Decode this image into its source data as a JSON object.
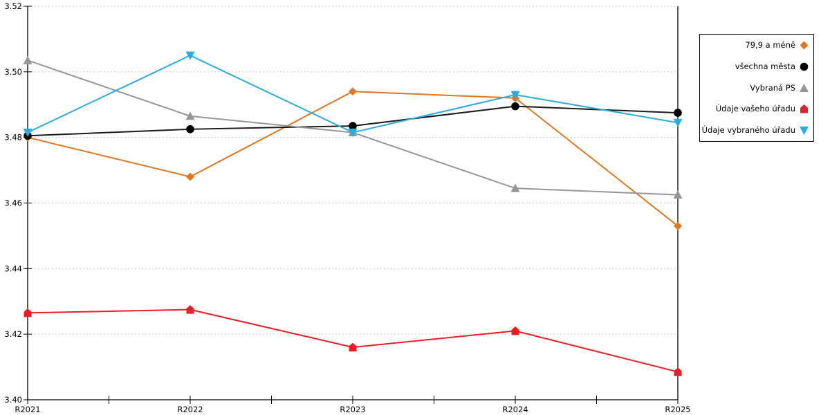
{
  "chart_data": {
    "type": "line",
    "categories": [
      "R2021",
      "R2022",
      "R2023",
      "R2024",
      "R2025"
    ],
    "series": [
      {
        "name": "79,9 a méně",
        "marker": "diamond",
        "color": "#E2761E",
        "values": [
          3.48,
          3.468,
          3.494,
          3.492,
          3.453
        ]
      },
      {
        "name": "všechna města",
        "marker": "circle",
        "color": "#1A1A1A",
        "values": [
          3.4805,
          3.4825,
          3.4835,
          3.4895,
          3.4875
        ]
      },
      {
        "name": "Vybraná PS",
        "marker": "triangle-up",
        "color": "#969696",
        "values": [
          3.5035,
          3.4865,
          3.4815,
          3.4645,
          3.4625
        ]
      },
      {
        "name": "Údaje vašeho úřadu",
        "marker": "pentagon",
        "color": "#EE1C25",
        "values": [
          3.4265,
          3.4275,
          3.416,
          3.421,
          3.4085
        ]
      },
      {
        "name": "Údaje vybraného úřadu",
        "marker": "triangle-down",
        "color": "#29ABE2",
        "values": [
          3.4815,
          3.505,
          3.4815,
          3.493,
          3.4845
        ]
      }
    ],
    "ylim": [
      3.4,
      3.52
    ],
    "y_ticks": [
      3.4,
      3.42,
      3.44,
      3.46,
      3.48,
      3.5,
      3.52
    ],
    "y_tick_decimals": 2,
    "grid": "horizontal-dashed",
    "legend_position": "top-right",
    "style": {
      "background": "#ffffff",
      "grid_color": "#c4c4c4",
      "axis_color": "#000000"
    }
  }
}
